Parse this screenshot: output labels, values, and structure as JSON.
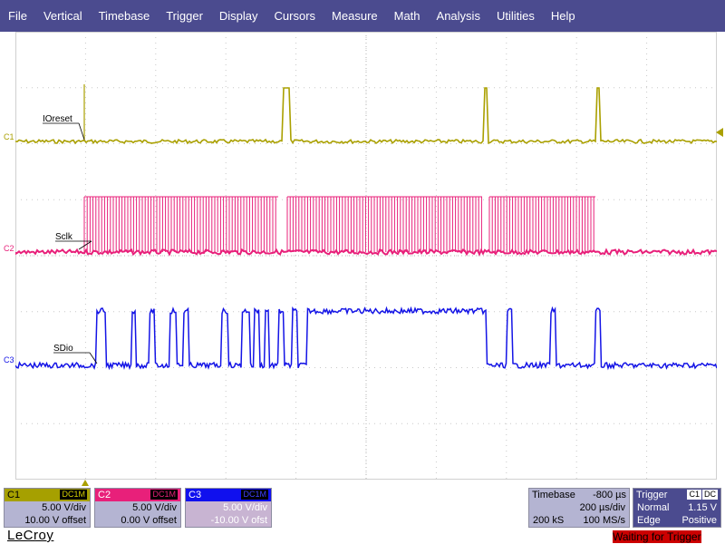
{
  "menu": [
    "File",
    "Vertical",
    "Timebase",
    "Trigger",
    "Display",
    "Cursors",
    "Measure",
    "Math",
    "Analysis",
    "Utilities",
    "Help"
  ],
  "channels": [
    {
      "id": "C1",
      "coupling": "DC1M",
      "scale": "5.00 V/div",
      "offset": "10.00 V offset",
      "color": "#aaa000",
      "label": "IOreset"
    },
    {
      "id": "C2",
      "coupling": "DC1M",
      "scale": "5.00 V/div",
      "offset": "0.00 V offset",
      "color": "#e8207a",
      "label": "Sclk"
    },
    {
      "id": "C3",
      "coupling": "DC1M",
      "scale": "5.00 V/div",
      "offset": "-10.00 V ofst",
      "color": "#1414e6",
      "label": "SDio"
    }
  ],
  "timebase": {
    "title": "Timebase",
    "delay": "-800 µs",
    "samples": "200 kS",
    "tdiv": "200 µs/div",
    "rate": "100 MS/s"
  },
  "trigger": {
    "title": "Trigger",
    "source": "C1",
    "coupling": "DC",
    "mode": "Normal",
    "level": "1.15 V",
    "type": "Edge",
    "slope": "Positive"
  },
  "brand": "LeCroy",
  "status": {
    "prefix": "Waiting",
    "suffix": " for Trigger"
  }
}
